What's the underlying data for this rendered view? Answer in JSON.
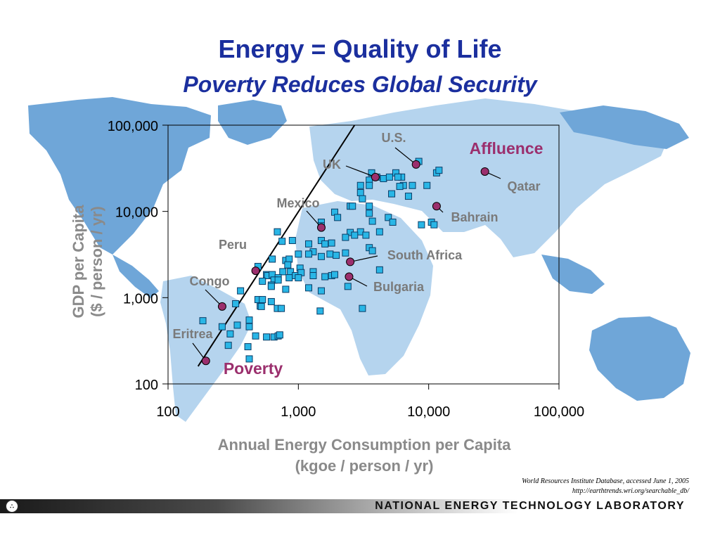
{
  "slide": {
    "title": "Energy = Quality of Life",
    "subtitle": "Poverty Reduces Global Security",
    "source_line1": "World Resources Institute Database, accessed June 1, 2005",
    "source_line2": "http://earthtrends.wri.org/searchable_db/",
    "footer_org": "NATIONAL ENERGY TECHNOLOGY LABORATORY",
    "footer_logo": "∴"
  },
  "colors": {
    "title": "#1b2f9e",
    "map": "#6fa6d8",
    "map_light": "#b5d4ee",
    "point_fill": "#29b6e6",
    "labeled_point_fill": "#9b2f6d",
    "annotation": "#9b2f6d",
    "axis_label": "#8a8a8a"
  },
  "chart_data": {
    "type": "scatter",
    "xlabel": "Annual Energy Consumption per Capita",
    "xlabel_units": "(kgoe / person / yr)",
    "ylabel": "GDP per Capita",
    "ylabel_units": "($ / person / yr)",
    "x_scale": "log",
    "y_scale": "log",
    "xlim": [
      100,
      100000
    ],
    "ylim": [
      100,
      100000
    ],
    "x_ticks": [
      "100",
      "1,000",
      "10,000",
      "100,000"
    ],
    "y_ticks": [
      "100",
      "1,000",
      "10,000",
      "100,000"
    ],
    "annotations": {
      "upper": "Affluence",
      "lower": "Poverty"
    },
    "trend_line": [
      [
        170,
        160
      ],
      [
        2700,
        100000
      ]
    ],
    "labeled_points": [
      {
        "name": "U.S.",
        "x": 8000,
        "y": 35000
      },
      {
        "name": "UK",
        "x": 3900,
        "y": 25000
      },
      {
        "name": "Qatar",
        "x": 27000,
        "y": 29000
      },
      {
        "name": "Bahrain",
        "x": 11500,
        "y": 11500
      },
      {
        "name": "Mexico",
        "x": 1500,
        "y": 6500
      },
      {
        "name": "Peru",
        "x": 470,
        "y": 2050
      },
      {
        "name": "South Africa",
        "x": 2500,
        "y": 2600
      },
      {
        "name": "Bulgaria",
        "x": 2450,
        "y": 1750
      },
      {
        "name": "Congo",
        "x": 260,
        "y": 790
      },
      {
        "name": "Eritrea",
        "x": 195,
        "y": 185
      }
    ],
    "points": [
      [
        3650,
        28000
      ],
      [
        5600,
        28000
      ],
      [
        6200,
        25000
      ],
      [
        8400,
        38000
      ],
      [
        11500,
        28000
      ],
      [
        12000,
        30000
      ],
      [
        3500,
        23000
      ],
      [
        4000,
        25000
      ],
      [
        4500,
        24000
      ],
      [
        5000,
        25000
      ],
      [
        5800,
        25000
      ],
      [
        6400,
        20000
      ],
      [
        3000,
        20000
      ],
      [
        3500,
        20000
      ],
      [
        6000,
        19500
      ],
      [
        7500,
        20000
      ],
      [
        9700,
        20000
      ],
      [
        3000,
        16500
      ],
      [
        3100,
        14000
      ],
      [
        3500,
        11500
      ],
      [
        2500,
        11500
      ],
      [
        2600,
        11500
      ],
      [
        5200,
        16000
      ],
      [
        7000,
        15000
      ],
      [
        1900,
        9800
      ],
      [
        3500,
        9500
      ],
      [
        1500,
        7500
      ],
      [
        1500,
        6800
      ],
      [
        2000,
        8500
      ],
      [
        4900,
        8500
      ],
      [
        3700,
        7700
      ],
      [
        5300,
        7500
      ],
      [
        8800,
        7000
      ],
      [
        10500,
        7500
      ],
      [
        11000,
        7000
      ],
      [
        2500,
        5700
      ],
      [
        3000,
        5800
      ],
      [
        2300,
        5000
      ],
      [
        2700,
        5300
      ],
      [
        3300,
        5300
      ],
      [
        4200,
        5800
      ],
      [
        690,
        5800
      ],
      [
        750,
        4500
      ],
      [
        900,
        4600
      ],
      [
        1500,
        4600
      ],
      [
        1200,
        4200
      ],
      [
        1600,
        4200
      ],
      [
        1800,
        4300
      ],
      [
        2300,
        3300
      ],
      [
        3500,
        3800
      ],
      [
        3700,
        3500
      ],
      [
        1300,
        3400
      ],
      [
        1500,
        3000
      ],
      [
        1750,
        3200
      ],
      [
        1950,
        3100
      ],
      [
        630,
        2800
      ],
      [
        800,
        2700
      ],
      [
        850,
        2800
      ],
      [
        1000,
        3200
      ],
      [
        1200,
        3200
      ],
      [
        490,
        2300
      ],
      [
        830,
        2400
      ],
      [
        760,
        2000
      ],
      [
        870,
        2000
      ],
      [
        1030,
        2200
      ],
      [
        1300,
        2000
      ],
      [
        570,
        1850
      ],
      [
        580,
        1800
      ],
      [
        630,
        1850
      ],
      [
        700,
        1700
      ],
      [
        850,
        1700
      ],
      [
        950,
        1800
      ],
      [
        1050,
        1950
      ],
      [
        1800,
        1800
      ],
      [
        1900,
        1850
      ],
      [
        1000,
        1700
      ],
      [
        1300,
        1800
      ],
      [
        1600,
        1750
      ],
      [
        4200,
        2100
      ],
      [
        650,
        1600
      ],
      [
        530,
        1550
      ],
      [
        700,
        1600
      ],
      [
        620,
        1400
      ],
      [
        620,
        1350
      ],
      [
        360,
        1200
      ],
      [
        800,
        1250
      ],
      [
        1200,
        1300
      ],
      [
        1500,
        1200
      ],
      [
        2400,
        1350
      ],
      [
        490,
        950
      ],
      [
        530,
        950
      ],
      [
        620,
        900
      ],
      [
        330,
        850
      ],
      [
        510,
        800
      ],
      [
        520,
        790
      ],
      [
        690,
        750
      ],
      [
        740,
        750
      ],
      [
        1470,
        700
      ],
      [
        3100,
        750
      ],
      [
        185,
        540
      ],
      [
        260,
        460
      ],
      [
        340,
        480
      ],
      [
        420,
        550
      ],
      [
        420,
        460
      ],
      [
        300,
        380
      ],
      [
        470,
        360
      ],
      [
        570,
        350
      ],
      [
        650,
        350
      ],
      [
        700,
        360
      ],
      [
        720,
        370
      ],
      [
        290,
        280
      ],
      [
        410,
        270
      ],
      [
        420,
        195
      ]
    ]
  }
}
